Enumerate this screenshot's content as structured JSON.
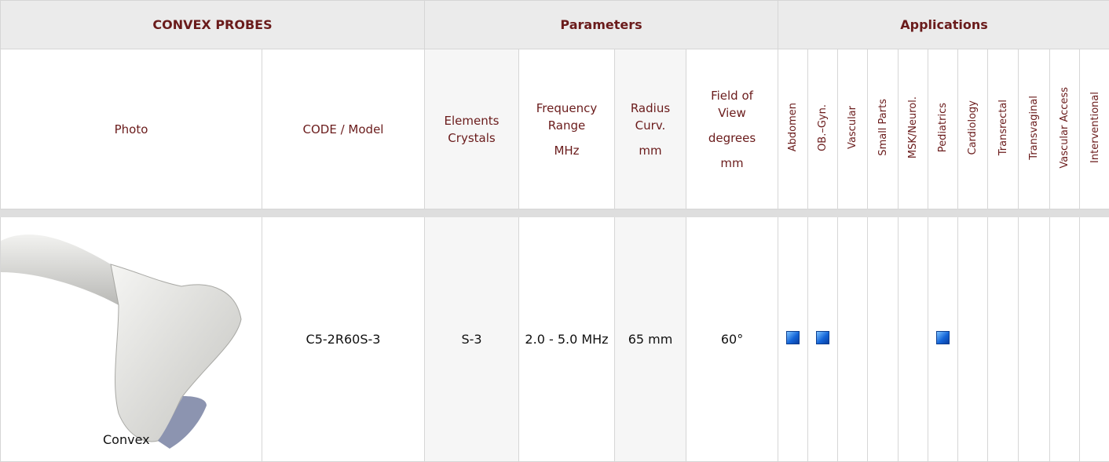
{
  "header": {
    "groups": [
      "CONVEX PROBES",
      "Parameters",
      "Applications"
    ]
  },
  "columns": {
    "photo": "Photo",
    "code": "CODE / Model",
    "parameters": [
      [
        "Elements",
        "Crystals"
      ],
      [
        "Frequency",
        "Range",
        "MHz"
      ],
      [
        "Radius",
        "Curv.",
        "mm"
      ],
      [
        "Field of",
        "View",
        "degrees",
        "mm"
      ]
    ],
    "applications": [
      "Abdomen",
      "OB.–Gyn.",
      "Vascular",
      "Small Parts",
      "MSK/Neurol.",
      "Pediatrics",
      "Cardiology",
      "Transrectal",
      "Transvaginal",
      "Vascular Access",
      "Interventional"
    ]
  },
  "rows": [
    {
      "photo_caption": "Convex",
      "code": "C5-2R60S-3",
      "parameters": [
        "S-3",
        "2.0 - 5.0 MHz",
        "65 mm",
        "60°"
      ],
      "applications": [
        true,
        true,
        false,
        false,
        false,
        true,
        false,
        false,
        false,
        false,
        false
      ]
    }
  ]
}
